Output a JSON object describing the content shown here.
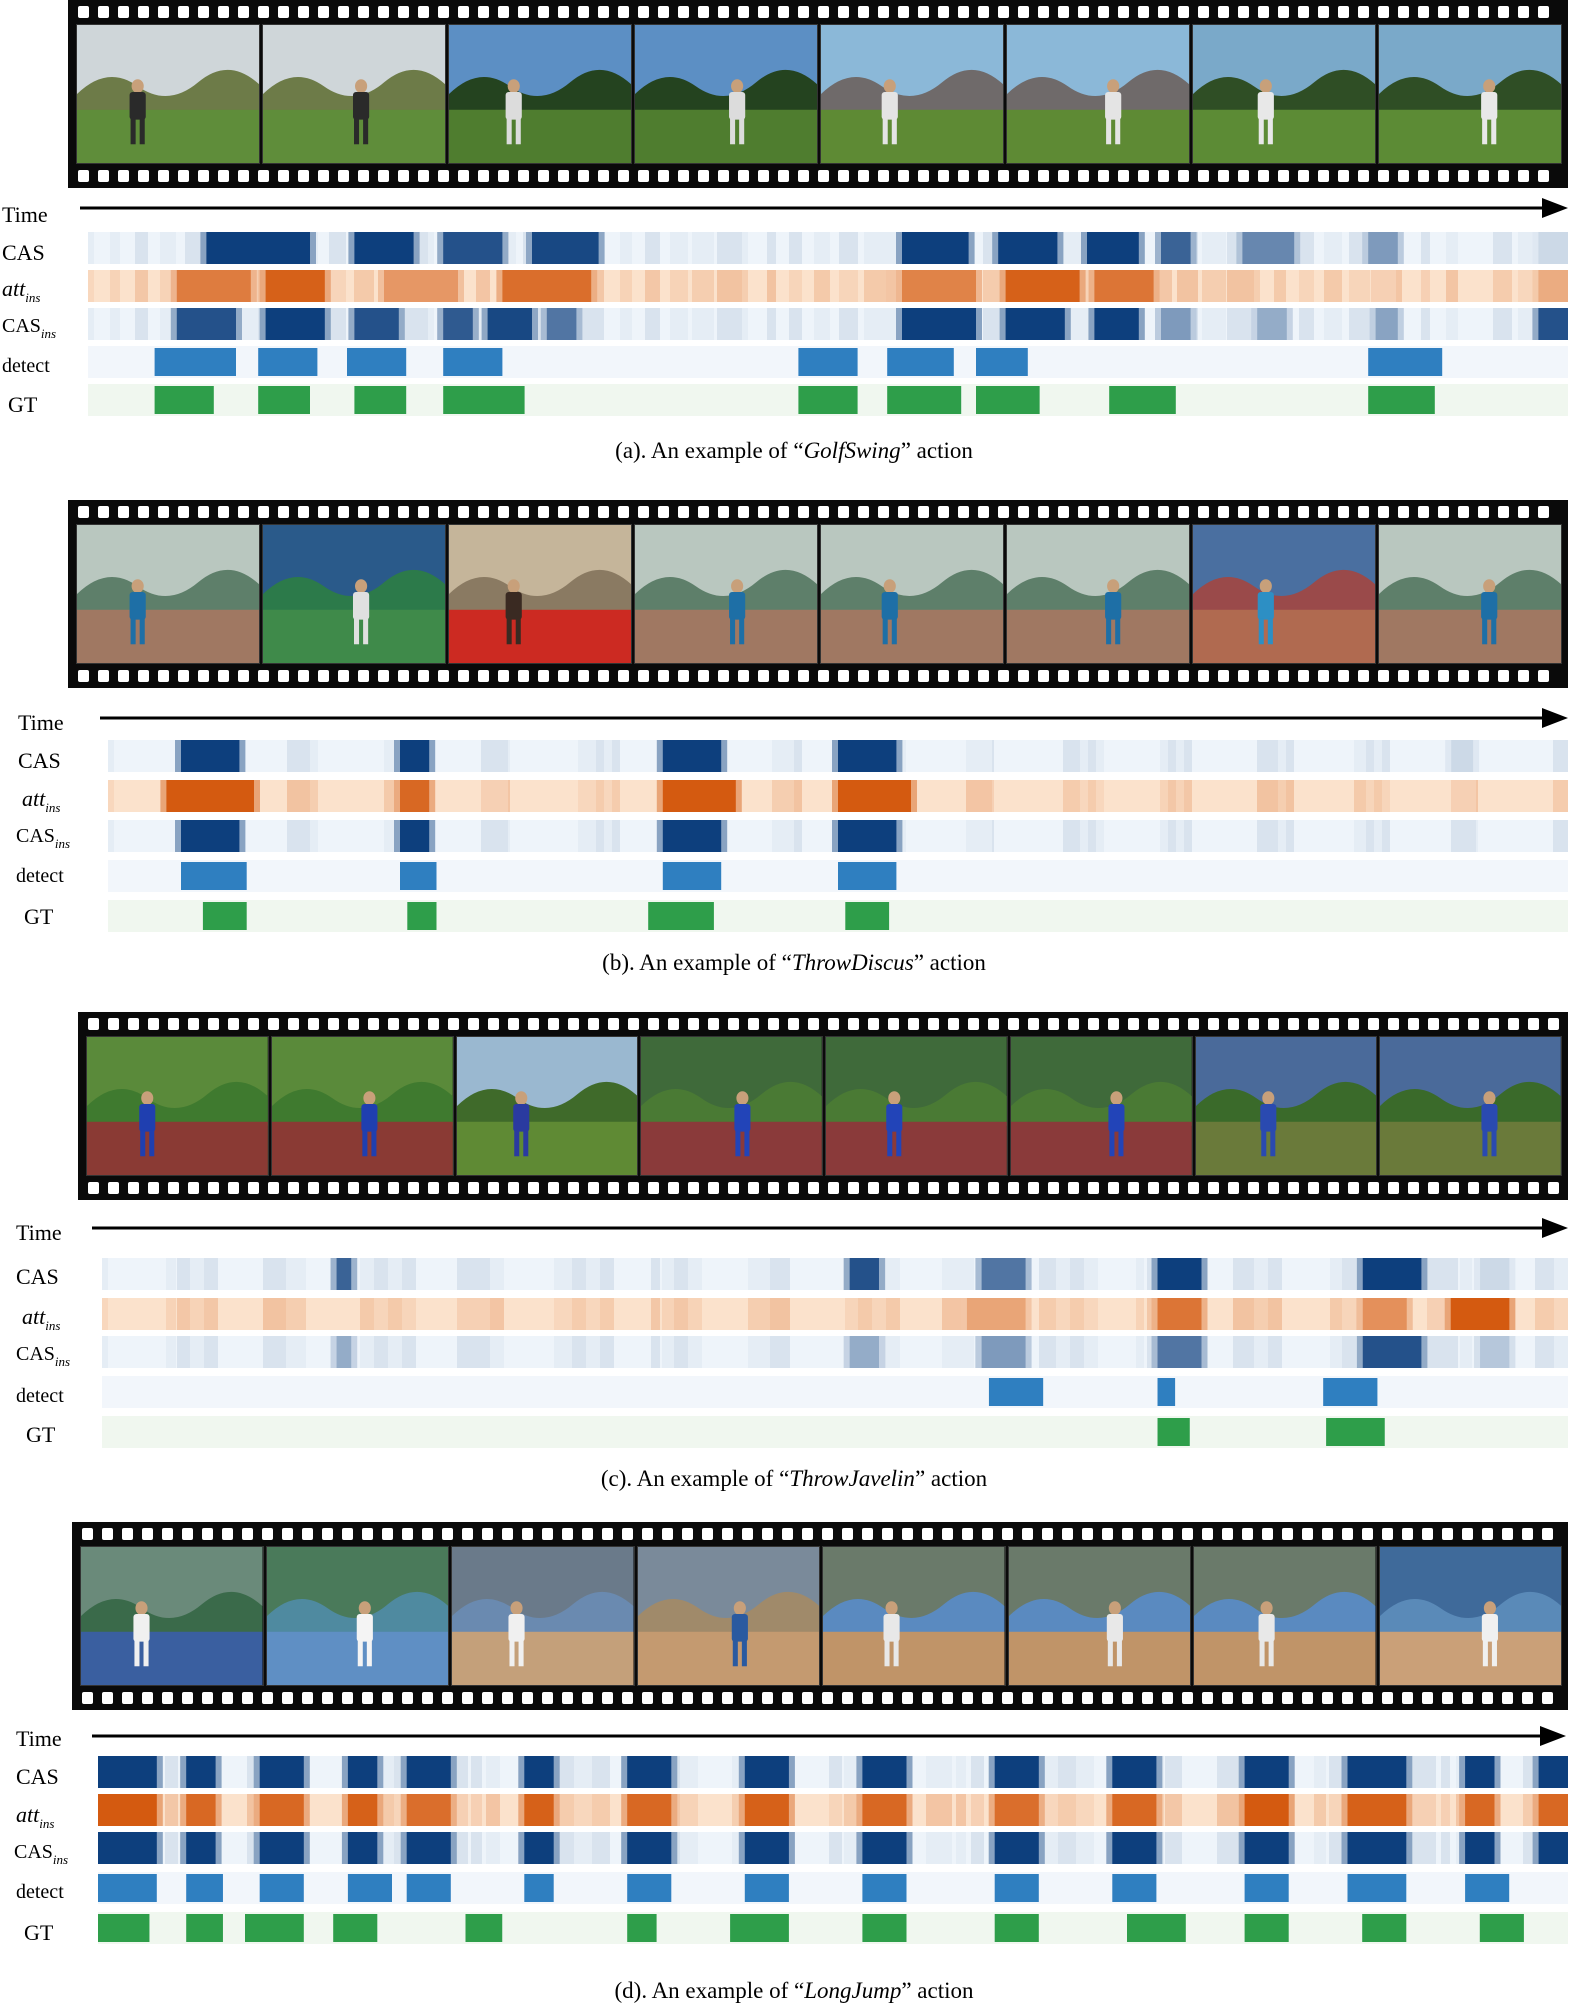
{
  "labels": {
    "time": "Time",
    "cas": "CAS",
    "att": "att",
    "att_sub": "ins",
    "casins": "CAS",
    "casins_sub": "ins",
    "detect": "detect",
    "gt": "GT"
  },
  "colors": {
    "cas": "#0d3f7d",
    "att": "#d45a10",
    "detect": "#2f7fc0",
    "gt": "#2e9e4a"
  },
  "panels": [
    {
      "caption_pre": "(a). An example of “",
      "caption_action": "GolfSwing",
      "caption_post": "” action",
      "frames": [
        "golf-course",
        "golf-course",
        "golf-trees",
        "golf-trees",
        "golf-wall",
        "golf-wall",
        "golf-park",
        "golf-park"
      ],
      "cas": [
        [
          0.08,
          0.15,
          1
        ],
        [
          0.18,
          0.22,
          1
        ],
        [
          0.24,
          0.28,
          0.9
        ],
        [
          0.3,
          0.345,
          0.95
        ],
        [
          0.55,
          0.595,
          1
        ],
        [
          0.615,
          0.655,
          1
        ],
        [
          0.675,
          0.71,
          1
        ],
        [
          0.725,
          0.745,
          0.8
        ],
        [
          0.78,
          0.815,
          0.6
        ],
        [
          0.865,
          0.885,
          0.5
        ],
        [
          0.98,
          1.0,
          0.15
        ]
      ],
      "att": [
        [
          0.06,
          0.11,
          0.75
        ],
        [
          0.12,
          0.16,
          0.95
        ],
        [
          0.2,
          0.25,
          0.55
        ],
        [
          0.28,
          0.34,
          0.85
        ],
        [
          0.55,
          0.6,
          0.7
        ],
        [
          0.62,
          0.67,
          0.95
        ],
        [
          0.68,
          0.72,
          0.8
        ],
        [
          0.98,
          1.0,
          0.4
        ]
      ],
      "casins": [
        [
          0.06,
          0.1,
          0.9
        ],
        [
          0.12,
          0.16,
          1
        ],
        [
          0.18,
          0.21,
          0.9
        ],
        [
          0.24,
          0.26,
          0.85
        ],
        [
          0.27,
          0.3,
          0.95
        ],
        [
          0.31,
          0.33,
          0.7
        ],
        [
          0.55,
          0.6,
          1
        ],
        [
          0.62,
          0.66,
          1
        ],
        [
          0.68,
          0.71,
          1
        ],
        [
          0.725,
          0.745,
          0.5
        ],
        [
          0.79,
          0.81,
          0.4
        ],
        [
          0.87,
          0.885,
          0.45
        ],
        [
          0.98,
          1.0,
          0.9
        ]
      ],
      "detect": [
        [
          0.045,
          0.1
        ],
        [
          0.115,
          0.155
        ],
        [
          0.175,
          0.215
        ],
        [
          0.24,
          0.28
        ],
        [
          0.48,
          0.52
        ],
        [
          0.54,
          0.585
        ],
        [
          0.6,
          0.635
        ],
        [
          0.865,
          0.915
        ]
      ],
      "gt": [
        [
          0.045,
          0.085
        ],
        [
          0.115,
          0.15
        ],
        [
          0.18,
          0.215
        ],
        [
          0.24,
          0.295
        ],
        [
          0.48,
          0.52
        ],
        [
          0.54,
          0.59
        ],
        [
          0.6,
          0.643
        ],
        [
          0.69,
          0.735
        ],
        [
          0.865,
          0.91
        ]
      ]
    },
    {
      "caption_pre": "(b). An example of “",
      "caption_action": "ThrowDiscus",
      "caption_post": "” action",
      "frames": [
        "discus-cage",
        "discus-track",
        "discus-face",
        "discus-cage",
        "discus-cage",
        "discus-cage",
        "discus-stadium",
        "discus-cage"
      ],
      "cas": [
        [
          0.05,
          0.09,
          1
        ],
        [
          0.2,
          0.22,
          1
        ],
        [
          0.38,
          0.42,
          1
        ],
        [
          0.5,
          0.54,
          1
        ],
        [
          0.92,
          0.935,
          0.15
        ]
      ],
      "att": [
        [
          0.04,
          0.1,
          1
        ],
        [
          0.2,
          0.22,
          0.9
        ],
        [
          0.38,
          0.43,
          1
        ],
        [
          0.5,
          0.55,
          1
        ]
      ],
      "casins": [
        [
          0.05,
          0.09,
          1
        ],
        [
          0.2,
          0.22,
          1
        ],
        [
          0.38,
          0.42,
          1
        ],
        [
          0.5,
          0.54,
          1
        ]
      ],
      "detect": [
        [
          0.05,
          0.095
        ],
        [
          0.2,
          0.225
        ],
        [
          0.38,
          0.42
        ],
        [
          0.5,
          0.54
        ]
      ],
      "gt": [
        [
          0.065,
          0.095
        ],
        [
          0.205,
          0.225
        ],
        [
          0.37,
          0.415
        ],
        [
          0.505,
          0.535
        ]
      ]
    },
    {
      "caption_pre": "(c). An example of “",
      "caption_action": "ThrowJavelin",
      "caption_post": "” action",
      "frames": [
        "javelin-grip",
        "javelin-grip",
        "javelin-field",
        "javelin-run",
        "javelin-run",
        "javelin-run",
        "javelin-throw",
        "javelin-throw"
      ],
      "cas": [
        [
          0.16,
          0.17,
          0.8
        ],
        [
          0.51,
          0.53,
          0.9
        ],
        [
          0.6,
          0.63,
          0.7
        ],
        [
          0.72,
          0.75,
          1
        ],
        [
          0.86,
          0.9,
          1
        ],
        [
          0.94,
          0.96,
          0.15
        ]
      ],
      "att": [
        [
          0.59,
          0.63,
          0.45
        ],
        [
          0.72,
          0.75,
          0.8
        ],
        [
          0.86,
          0.89,
          0.6
        ],
        [
          0.92,
          0.96,
          1
        ]
      ],
      "casins": [
        [
          0.16,
          0.17,
          0.4
        ],
        [
          0.51,
          0.53,
          0.4
        ],
        [
          0.6,
          0.63,
          0.5
        ],
        [
          0.72,
          0.75,
          0.7
        ],
        [
          0.86,
          0.9,
          0.9
        ],
        [
          0.94,
          0.96,
          0.25
        ]
      ],
      "detect": [
        [
          0.605,
          0.642
        ],
        [
          0.72,
          0.732
        ],
        [
          0.833,
          0.87
        ]
      ],
      "gt": [
        [
          0.72,
          0.742
        ],
        [
          0.835,
          0.875
        ]
      ]
    },
    {
      "caption_pre": "(d). An example of “",
      "caption_action": "LongJump",
      "caption_post": "” action",
      "frames": [
        "jump-athlete",
        "jump-runway",
        "jump-air",
        "jump-pit",
        "jump-landing",
        "jump-landing",
        "jump-landing",
        "jump-sand"
      ],
      "cas": [
        [
          0.0,
          0.04,
          1
        ],
        [
          0.06,
          0.08,
          1
        ],
        [
          0.11,
          0.14,
          1
        ],
        [
          0.17,
          0.19,
          1
        ],
        [
          0.21,
          0.24,
          1
        ],
        [
          0.29,
          0.31,
          1
        ],
        [
          0.36,
          0.39,
          1
        ],
        [
          0.44,
          0.47,
          1
        ],
        [
          0.52,
          0.55,
          1
        ],
        [
          0.61,
          0.64,
          1
        ],
        [
          0.69,
          0.72,
          1
        ],
        [
          0.78,
          0.81,
          1
        ],
        [
          0.85,
          0.89,
          1
        ],
        [
          0.93,
          0.95,
          1
        ],
        [
          0.98,
          1.0,
          1
        ]
      ],
      "att": [
        [
          0.0,
          0.04,
          1
        ],
        [
          0.06,
          0.08,
          0.9
        ],
        [
          0.11,
          0.14,
          0.9
        ],
        [
          0.17,
          0.19,
          0.95
        ],
        [
          0.21,
          0.24,
          0.85
        ],
        [
          0.29,
          0.31,
          0.95
        ],
        [
          0.36,
          0.39,
          0.9
        ],
        [
          0.44,
          0.47,
          0.95
        ],
        [
          0.52,
          0.55,
          0.9
        ],
        [
          0.61,
          0.64,
          0.85
        ],
        [
          0.69,
          0.72,
          0.9
        ],
        [
          0.78,
          0.81,
          1
        ],
        [
          0.85,
          0.89,
          0.95
        ],
        [
          0.93,
          0.95,
          0.9
        ],
        [
          0.98,
          1.0,
          0.9
        ]
      ],
      "casins": [
        [
          0.0,
          0.04,
          1
        ],
        [
          0.06,
          0.08,
          1
        ],
        [
          0.11,
          0.14,
          1
        ],
        [
          0.17,
          0.19,
          1
        ],
        [
          0.21,
          0.24,
          1
        ],
        [
          0.29,
          0.31,
          1
        ],
        [
          0.36,
          0.39,
          1
        ],
        [
          0.44,
          0.47,
          1
        ],
        [
          0.52,
          0.55,
          1
        ],
        [
          0.61,
          0.64,
          1
        ],
        [
          0.69,
          0.72,
          1
        ],
        [
          0.78,
          0.81,
          1
        ],
        [
          0.85,
          0.89,
          1
        ],
        [
          0.93,
          0.95,
          1
        ],
        [
          0.98,
          1.0,
          1
        ]
      ],
      "detect": [
        [
          0.0,
          0.04
        ],
        [
          0.06,
          0.085
        ],
        [
          0.11,
          0.14
        ],
        [
          0.17,
          0.2
        ],
        [
          0.21,
          0.24
        ],
        [
          0.29,
          0.31
        ],
        [
          0.36,
          0.39
        ],
        [
          0.44,
          0.47
        ],
        [
          0.52,
          0.55
        ],
        [
          0.61,
          0.64
        ],
        [
          0.69,
          0.72
        ],
        [
          0.78,
          0.81
        ],
        [
          0.85,
          0.89
        ],
        [
          0.93,
          0.96
        ]
      ],
      "gt": [
        [
          0.0,
          0.035
        ],
        [
          0.06,
          0.085
        ],
        [
          0.1,
          0.14
        ],
        [
          0.16,
          0.19
        ],
        [
          0.25,
          0.275
        ],
        [
          0.36,
          0.38
        ],
        [
          0.43,
          0.47
        ],
        [
          0.52,
          0.55
        ],
        [
          0.61,
          0.64
        ],
        [
          0.7,
          0.74
        ],
        [
          0.78,
          0.81
        ],
        [
          0.86,
          0.89
        ],
        [
          0.94,
          0.97
        ]
      ]
    }
  ]
}
